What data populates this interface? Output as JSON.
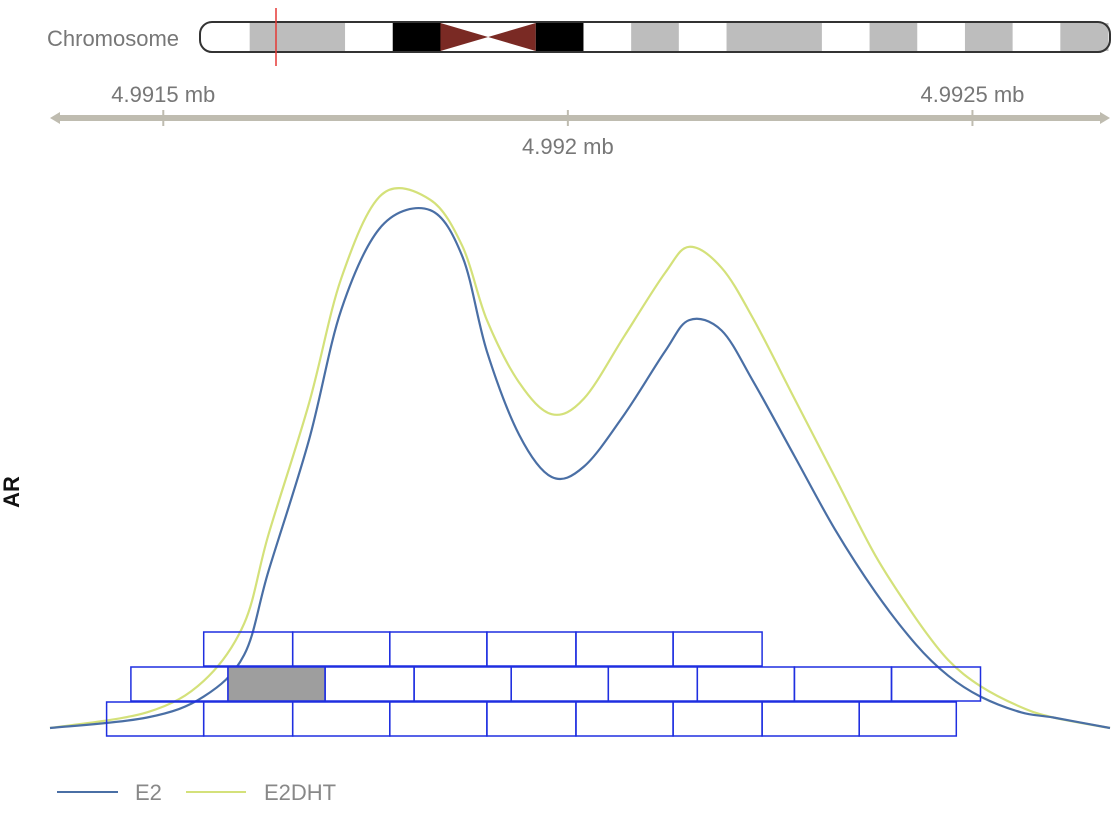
{
  "ideogram": {
    "label": "Chromosome",
    "colors": {
      "centromere": "#7a2a24",
      "gneg": "#ffffff",
      "gpos": "#bdbdbd",
      "gpos100": "#000000",
      "highlight": "#e53935"
    },
    "bands": [
      "gneg",
      "gpos",
      "gpos",
      "gneg",
      "gpos100",
      "acen",
      "acen",
      "gpos100",
      "gneg",
      "gpos",
      "gneg",
      "gpos",
      "gpos",
      "gneg",
      "gpos",
      "gneg",
      "gpos",
      "gneg",
      "gpos"
    ]
  },
  "axis": {
    "ticks": [
      {
        "value": 4.9915,
        "label": "4.9915 mb"
      },
      {
        "value": 4.992,
        "label": "4.992 mb"
      },
      {
        "value": 4.9925,
        "label": "4.9925 mb"
      }
    ]
  },
  "track_label": "AR",
  "chart_data": {
    "type": "line",
    "series": [
      {
        "name": "E2",
        "color": "#4a6fa5",
        "x": [
          4.99136,
          4.99148,
          4.99155,
          4.9916,
          4.99163,
          4.99168,
          4.99172,
          4.99177,
          4.99183,
          4.99187,
          4.9919,
          4.99194,
          4.99198,
          4.99202,
          4.99207,
          4.99212,
          4.99215,
          4.99219,
          4.99223,
          4.99228,
          4.99233,
          4.99238,
          4.99243,
          4.99247,
          4.99251,
          4.99256,
          4.9926,
          4.99267
        ],
        "y": [
          0.0,
          0.02,
          0.06,
          0.14,
          0.3,
          0.55,
          0.8,
          0.96,
          0.99,
          0.9,
          0.72,
          0.56,
          0.48,
          0.5,
          0.6,
          0.72,
          0.78,
          0.76,
          0.66,
          0.52,
          0.38,
          0.26,
          0.16,
          0.1,
          0.06,
          0.03,
          0.02,
          0.0
        ]
      },
      {
        "name": "E2DHT",
        "color": "#d4e17a",
        "x": [
          4.99136,
          4.99148,
          4.99155,
          4.9916,
          4.99163,
          4.99168,
          4.99172,
          4.99177,
          4.99183,
          4.99187,
          4.9919,
          4.99194,
          4.99198,
          4.99202,
          4.99207,
          4.99212,
          4.99215,
          4.99219,
          4.99223,
          4.99228,
          4.99233,
          4.99238,
          4.99243,
          4.99247,
          4.99251,
          4.99256,
          4.9926,
          4.99267
        ],
        "y": [
          0.0,
          0.03,
          0.09,
          0.2,
          0.37,
          0.62,
          0.86,
          1.02,
          1.01,
          0.92,
          0.78,
          0.66,
          0.6,
          0.63,
          0.75,
          0.87,
          0.92,
          0.88,
          0.78,
          0.63,
          0.48,
          0.33,
          0.21,
          0.13,
          0.08,
          0.04,
          0.02,
          0.0
        ]
      }
    ],
    "tiles": {
      "outline_color": "#1f2fe0",
      "highlight_color": "#9e9e9e",
      "rows": [
        {
          "highlight": [],
          "x": [
            4.99155,
            4.99166,
            4.99178,
            4.9919,
            4.99201,
            4.99213,
            4.99224
          ]
        },
        {
          "highlight": [
            1
          ],
          "x": [
            4.99146,
            4.99158,
            4.9917,
            4.99181,
            4.99193,
            4.99205,
            4.99216,
            4.99228,
            4.9924,
            4.99251
          ]
        },
        {
          "highlight": [],
          "x": [
            4.99143,
            4.99155,
            4.99166,
            4.99178,
            4.9919,
            4.99201,
            4.99213,
            4.99224,
            4.99236,
            4.99248
          ]
        }
      ]
    },
    "legend_position": "bottom-left",
    "grid": false
  }
}
